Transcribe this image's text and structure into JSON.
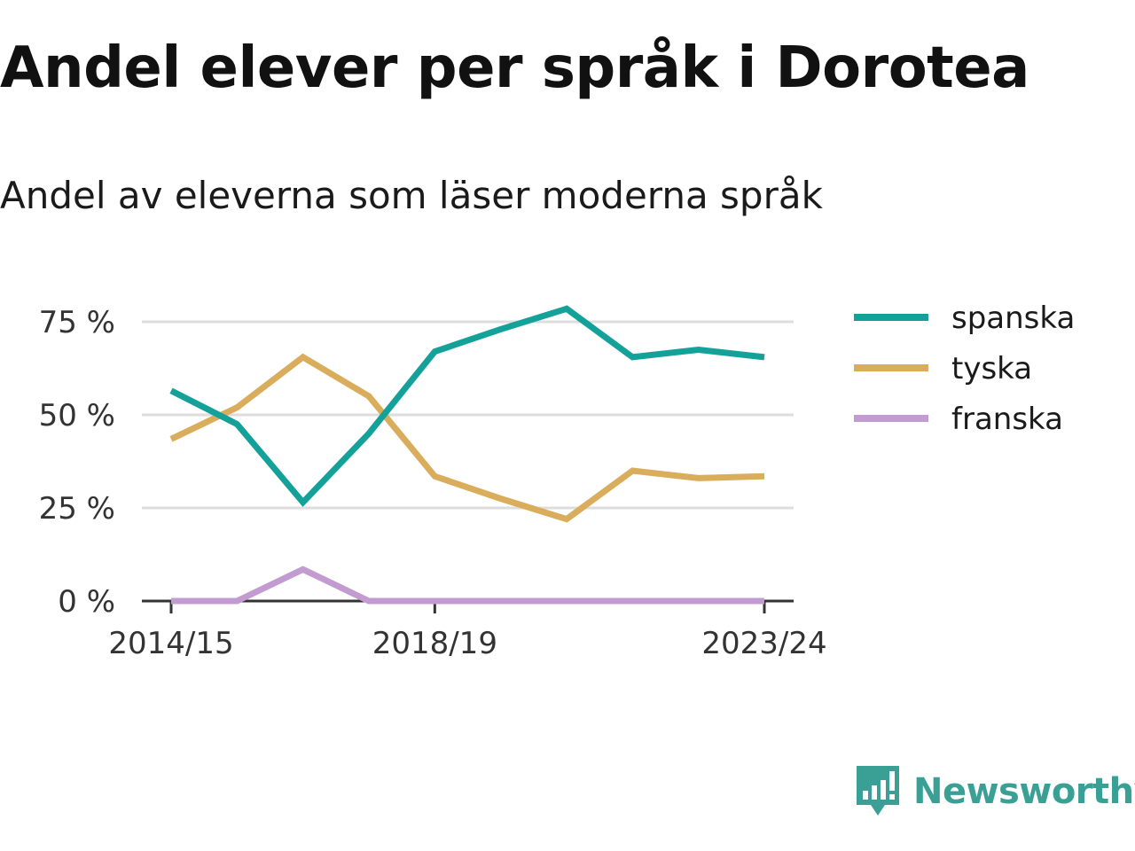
{
  "header": {
    "title": "Andel elever per språk i Dorotea",
    "subtitle": "Andel av eleverna som läser moderna språk"
  },
  "brand": {
    "name": "Newsworthy",
    "icon": "newsworthy-logo-icon",
    "color": "#3aa095"
  },
  "chart_data": {
    "type": "line",
    "title": "Andel elever per språk i Dorotea",
    "subtitle": "Andel av eleverna som läser moderna språk",
    "xlabel": "",
    "ylabel": "",
    "x": [
      "2014/15",
      "2015/16",
      "2016/17",
      "2017/18",
      "2018/19",
      "2019/20",
      "2020/21",
      "2021/22",
      "2022/23",
      "2023/24"
    ],
    "x_tick_labels": [
      "2014/15",
      "2018/19",
      "2023/24"
    ],
    "y_ticks": [
      0,
      25,
      50,
      75
    ],
    "y_tick_labels": [
      "0 %",
      "25 %",
      "50 %",
      "75 %"
    ],
    "ylim": [
      0,
      80
    ],
    "grid": true,
    "legend_position": "right",
    "series": [
      {
        "name": "spanska",
        "color": "#14a199",
        "values": [
          56.5,
          47.5,
          26.5,
          45,
          67,
          73,
          78.5,
          65.5,
          67.5,
          65.5
        ]
      },
      {
        "name": "tyska",
        "color": "#d9ad5b",
        "values": [
          43.5,
          52,
          65.5,
          55,
          33.5,
          27.5,
          22,
          35,
          33,
          33.5
        ]
      },
      {
        "name": "franska",
        "color": "#c29bd0",
        "values": [
          0,
          0,
          8.5,
          0,
          0,
          0,
          0,
          0,
          0,
          0
        ]
      }
    ]
  }
}
